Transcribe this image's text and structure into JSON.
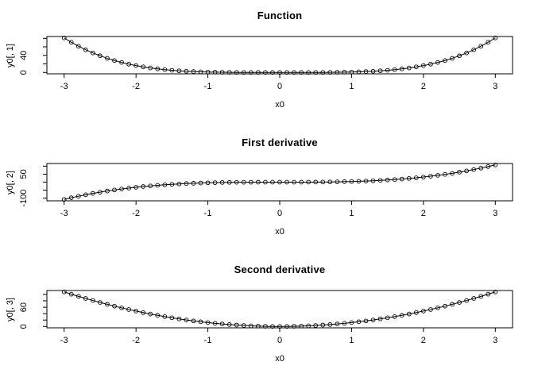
{
  "figure": {
    "background": "#ffffff",
    "foreground": "#000000"
  },
  "chart_data": [
    {
      "type": "line",
      "marker": "open-circle",
      "title": "Function",
      "xlabel": "x0",
      "ylabel": "y0[, 1]",
      "xlim": [
        -3.24,
        3.24
      ],
      "ylim": [
        -3.24,
        84.24
      ],
      "grid": false,
      "legend": "none",
      "xticks": [
        -3,
        -2,
        -1,
        0,
        1,
        2,
        3
      ],
      "xtick_labels": [
        "-3",
        "-2",
        "-1",
        "0",
        "1",
        "2",
        "3"
      ],
      "yticks": [
        0,
        20,
        40,
        60,
        80
      ],
      "ytick_labels": [
        "0",
        "",
        "40",
        "",
        ""
      ],
      "x": [
        -3,
        -2.9,
        -2.8,
        -2.7,
        -2.6,
        -2.5,
        -2.4,
        -2.3,
        -2.2,
        -2.1,
        -2,
        -1.9,
        -1.8,
        -1.7,
        -1.6,
        -1.5,
        -1.4,
        -1.3,
        -1.2,
        -1.1,
        -1,
        -0.9,
        -0.8,
        -0.7,
        -0.6,
        -0.5,
        -0.4,
        -0.3,
        -0.2,
        -0.1,
        0,
        0.1,
        0.2,
        0.3,
        0.4,
        0.5,
        0.6,
        0.7,
        0.8,
        0.9,
        1,
        1.1,
        1.2,
        1.3,
        1.4,
        1.5,
        1.6,
        1.7,
        1.8,
        1.9,
        2,
        2.1,
        2.2,
        2.3,
        2.4,
        2.5,
        2.6,
        2.7,
        2.8,
        2.9,
        3
      ],
      "y": [
        81,
        70.73,
        61.47,
        53.14,
        45.7,
        39.06,
        33.18,
        27.98,
        23.43,
        19.45,
        16,
        13.03,
        10.5,
        8.35,
        6.55,
        5.06,
        3.84,
        2.86,
        2.07,
        1.46,
        1,
        0.66,
        0.41,
        0.24,
        0.13,
        0.06,
        0.03,
        0.01,
        0,
        0,
        0,
        0,
        0,
        0.01,
        0.03,
        0.06,
        0.13,
        0.24,
        0.41,
        0.66,
        1,
        1.46,
        2.07,
        2.86,
        3.84,
        5.06,
        6.55,
        8.35,
        10.5,
        13.03,
        16,
        19.45,
        23.43,
        27.98,
        33.18,
        39.06,
        45.7,
        53.14,
        61.47,
        70.73,
        81
      ]
    },
    {
      "type": "line",
      "marker": "open-circle",
      "title": "First derivative",
      "xlabel": "x0",
      "ylabel": "y0[, 2]",
      "xlim": [
        -3.24,
        3.24
      ],
      "ylim": [
        -116.64,
        116.64
      ],
      "grid": false,
      "legend": "none",
      "xticks": [
        -3,
        -2,
        -1,
        0,
        1,
        2,
        3
      ],
      "xtick_labels": [
        "-3",
        "-2",
        "-1",
        "0",
        "1",
        "2",
        "3"
      ],
      "yticks": [
        -100,
        -50,
        0,
        50,
        100
      ],
      "ytick_labels": [
        "-100",
        "",
        "",
        "50",
        ""
      ],
      "x": [
        -3,
        -2.9,
        -2.8,
        -2.7,
        -2.6,
        -2.5,
        -2.4,
        -2.3,
        -2.2,
        -2.1,
        -2,
        -1.9,
        -1.8,
        -1.7,
        -1.6,
        -1.5,
        -1.4,
        -1.3,
        -1.2,
        -1.1,
        -1,
        -0.9,
        -0.8,
        -0.7,
        -0.6,
        -0.5,
        -0.4,
        -0.3,
        -0.2,
        -0.1,
        0,
        0.1,
        0.2,
        0.3,
        0.4,
        0.5,
        0.6,
        0.7,
        0.8,
        0.9,
        1,
        1.1,
        1.2,
        1.3,
        1.4,
        1.5,
        1.6,
        1.7,
        1.8,
        1.9,
        2,
        2.1,
        2.2,
        2.3,
        2.4,
        2.5,
        2.6,
        2.7,
        2.8,
        2.9,
        3
      ],
      "y": [
        -108,
        -97.56,
        -87.81,
        -78.73,
        -70.3,
        -62.5,
        -55.3,
        -48.67,
        -42.59,
        -37.04,
        -32,
        -27.44,
        -23.33,
        -19.65,
        -16.38,
        -13.5,
        -10.98,
        -8.79,
        -6.91,
        -5.32,
        -4,
        -2.92,
        -2.05,
        -1.37,
        -0.86,
        -0.5,
        -0.26,
        -0.11,
        -0.03,
        0,
        0,
        0,
        0.03,
        0.11,
        0.26,
        0.5,
        0.86,
        1.37,
        2.05,
        2.92,
        4,
        5.32,
        6.91,
        8.79,
        10.98,
        13.5,
        16.38,
        19.65,
        23.33,
        27.44,
        32,
        37.04,
        42.59,
        48.67,
        55.3,
        62.5,
        70.3,
        78.73,
        87.81,
        97.56,
        108
      ]
    },
    {
      "type": "line",
      "marker": "open-circle",
      "title": "Second derivative",
      "xlabel": "x0",
      "ylabel": "y0[, 3]",
      "xlim": [
        -3.24,
        3.24
      ],
      "ylim": [
        -4.32,
        112.32
      ],
      "grid": false,
      "legend": "none",
      "xticks": [
        -3,
        -2,
        -1,
        0,
        1,
        2,
        3
      ],
      "xtick_labels": [
        "-3",
        "-2",
        "-1",
        "0",
        "1",
        "2",
        "3"
      ],
      "yticks": [
        0,
        20,
        40,
        60,
        80,
        100
      ],
      "ytick_labels": [
        "0",
        "",
        "",
        "60",
        "",
        ""
      ],
      "x": [
        -3,
        -2.9,
        -2.8,
        -2.7,
        -2.6,
        -2.5,
        -2.4,
        -2.3,
        -2.2,
        -2.1,
        -2,
        -1.9,
        -1.8,
        -1.7,
        -1.6,
        -1.5,
        -1.4,
        -1.3,
        -1.2,
        -1.1,
        -1,
        -0.9,
        -0.8,
        -0.7,
        -0.6,
        -0.5,
        -0.4,
        -0.3,
        -0.2,
        -0.1,
        0,
        0.1,
        0.2,
        0.3,
        0.4,
        0.5,
        0.6,
        0.7,
        0.8,
        0.9,
        1,
        1.1,
        1.2,
        1.3,
        1.4,
        1.5,
        1.6,
        1.7,
        1.8,
        1.9,
        2,
        2.1,
        2.2,
        2.3,
        2.4,
        2.5,
        2.6,
        2.7,
        2.8,
        2.9,
        3
      ],
      "y": [
        108,
        100.92,
        94.08,
        87.48,
        81.12,
        75,
        69.12,
        63.48,
        58.08,
        52.92,
        48,
        43.32,
        38.88,
        34.68,
        30.72,
        27,
        23.52,
        20.28,
        17.28,
        14.52,
        12,
        9.72,
        7.68,
        5.88,
        4.32,
        3,
        1.92,
        1.08,
        0.48,
        0.12,
        0,
        0.12,
        0.48,
        1.08,
        1.92,
        3,
        4.32,
        5.88,
        7.68,
        9.72,
        12,
        14.52,
        17.28,
        20.28,
        23.52,
        27,
        30.72,
        34.68,
        38.88,
        43.32,
        48,
        52.92,
        58.08,
        63.48,
        69.12,
        75,
        81.12,
        87.48,
        94.08,
        100.92,
        108
      ]
    }
  ]
}
